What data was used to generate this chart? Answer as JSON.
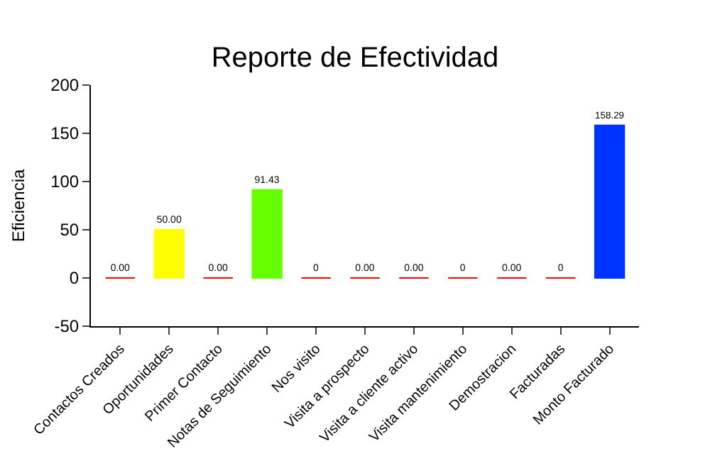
{
  "chart_data": {
    "type": "bar",
    "title": "Reporte de Efectividad",
    "ylabel": "Eficiencia",
    "categories": [
      "Contactos Creados",
      "Oportunidades",
      "Primer Contacto",
      "Notas de Seguimiento",
      "Nos visito",
      "Visita a prospecto",
      "Visita a cliente activo",
      "Visita mantenimiento",
      "Demostracion",
      "Facturadas",
      "Monto Facturado"
    ],
    "values": [
      0,
      50,
      0,
      91.43,
      0,
      0,
      0,
      0,
      0,
      0,
      158.29
    ],
    "colors": [
      "#ff0000",
      "#ffff00",
      "#ff0000",
      "#66ff00",
      "#ff0000",
      "#ff0000",
      "#ff0000",
      "#ff0000",
      "#ff0000",
      "#ff0000",
      "#0033ff"
    ],
    "value_labels": [
      "0.00",
      "50.00",
      "0.00",
      "91.43",
      "0",
      "0.00",
      "0.00",
      "0",
      "0.00",
      "0",
      "158.29"
    ],
    "ylim": [
      -50,
      200
    ],
    "yticks": [
      -50,
      0,
      50,
      100,
      150,
      200
    ]
  }
}
